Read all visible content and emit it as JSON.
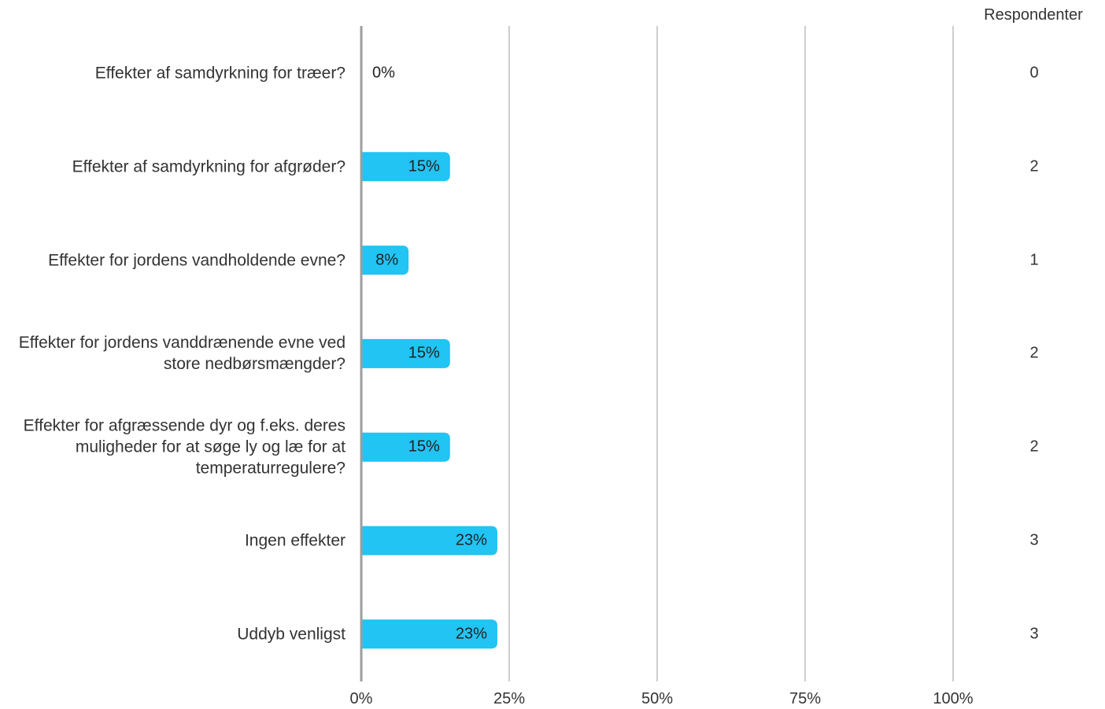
{
  "chart_data": {
    "type": "bar",
    "orientation": "horizontal",
    "categories": [
      "Effekter af samdyrkning for træer?",
      "Effekter af samdyrkning for afgrøder?",
      "Effekter for jordens vandholdende evne?",
      "Effekter for jordens vanddrænende evne ved store nedbørsmængder?",
      "Effekter for afgræssende dyr og f.eks. deres muligheder for at søge ly og læ for at temperaturregulere?",
      "Ingen effekter",
      "Uddyb venligst"
    ],
    "values": [
      0,
      15,
      8,
      15,
      15,
      23,
      23
    ],
    "value_labels": [
      "0%",
      "15%",
      "8%",
      "15%",
      "15%",
      "23%",
      "23%"
    ],
    "respondents": [
      "0",
      "2",
      "1",
      "2",
      "2",
      "3",
      "3"
    ],
    "respondents_header": "Respondenter",
    "xlim": [
      0,
      100
    ],
    "xticks": [
      "0%",
      "25%",
      "50%",
      "75%",
      "100%"
    ],
    "xtick_values": [
      0,
      25,
      50,
      75,
      100
    ],
    "grid": true,
    "bar_color": "#21c4f3",
    "grid_color": "#b3b3b3",
    "axis_color": "#9e9e9e"
  }
}
